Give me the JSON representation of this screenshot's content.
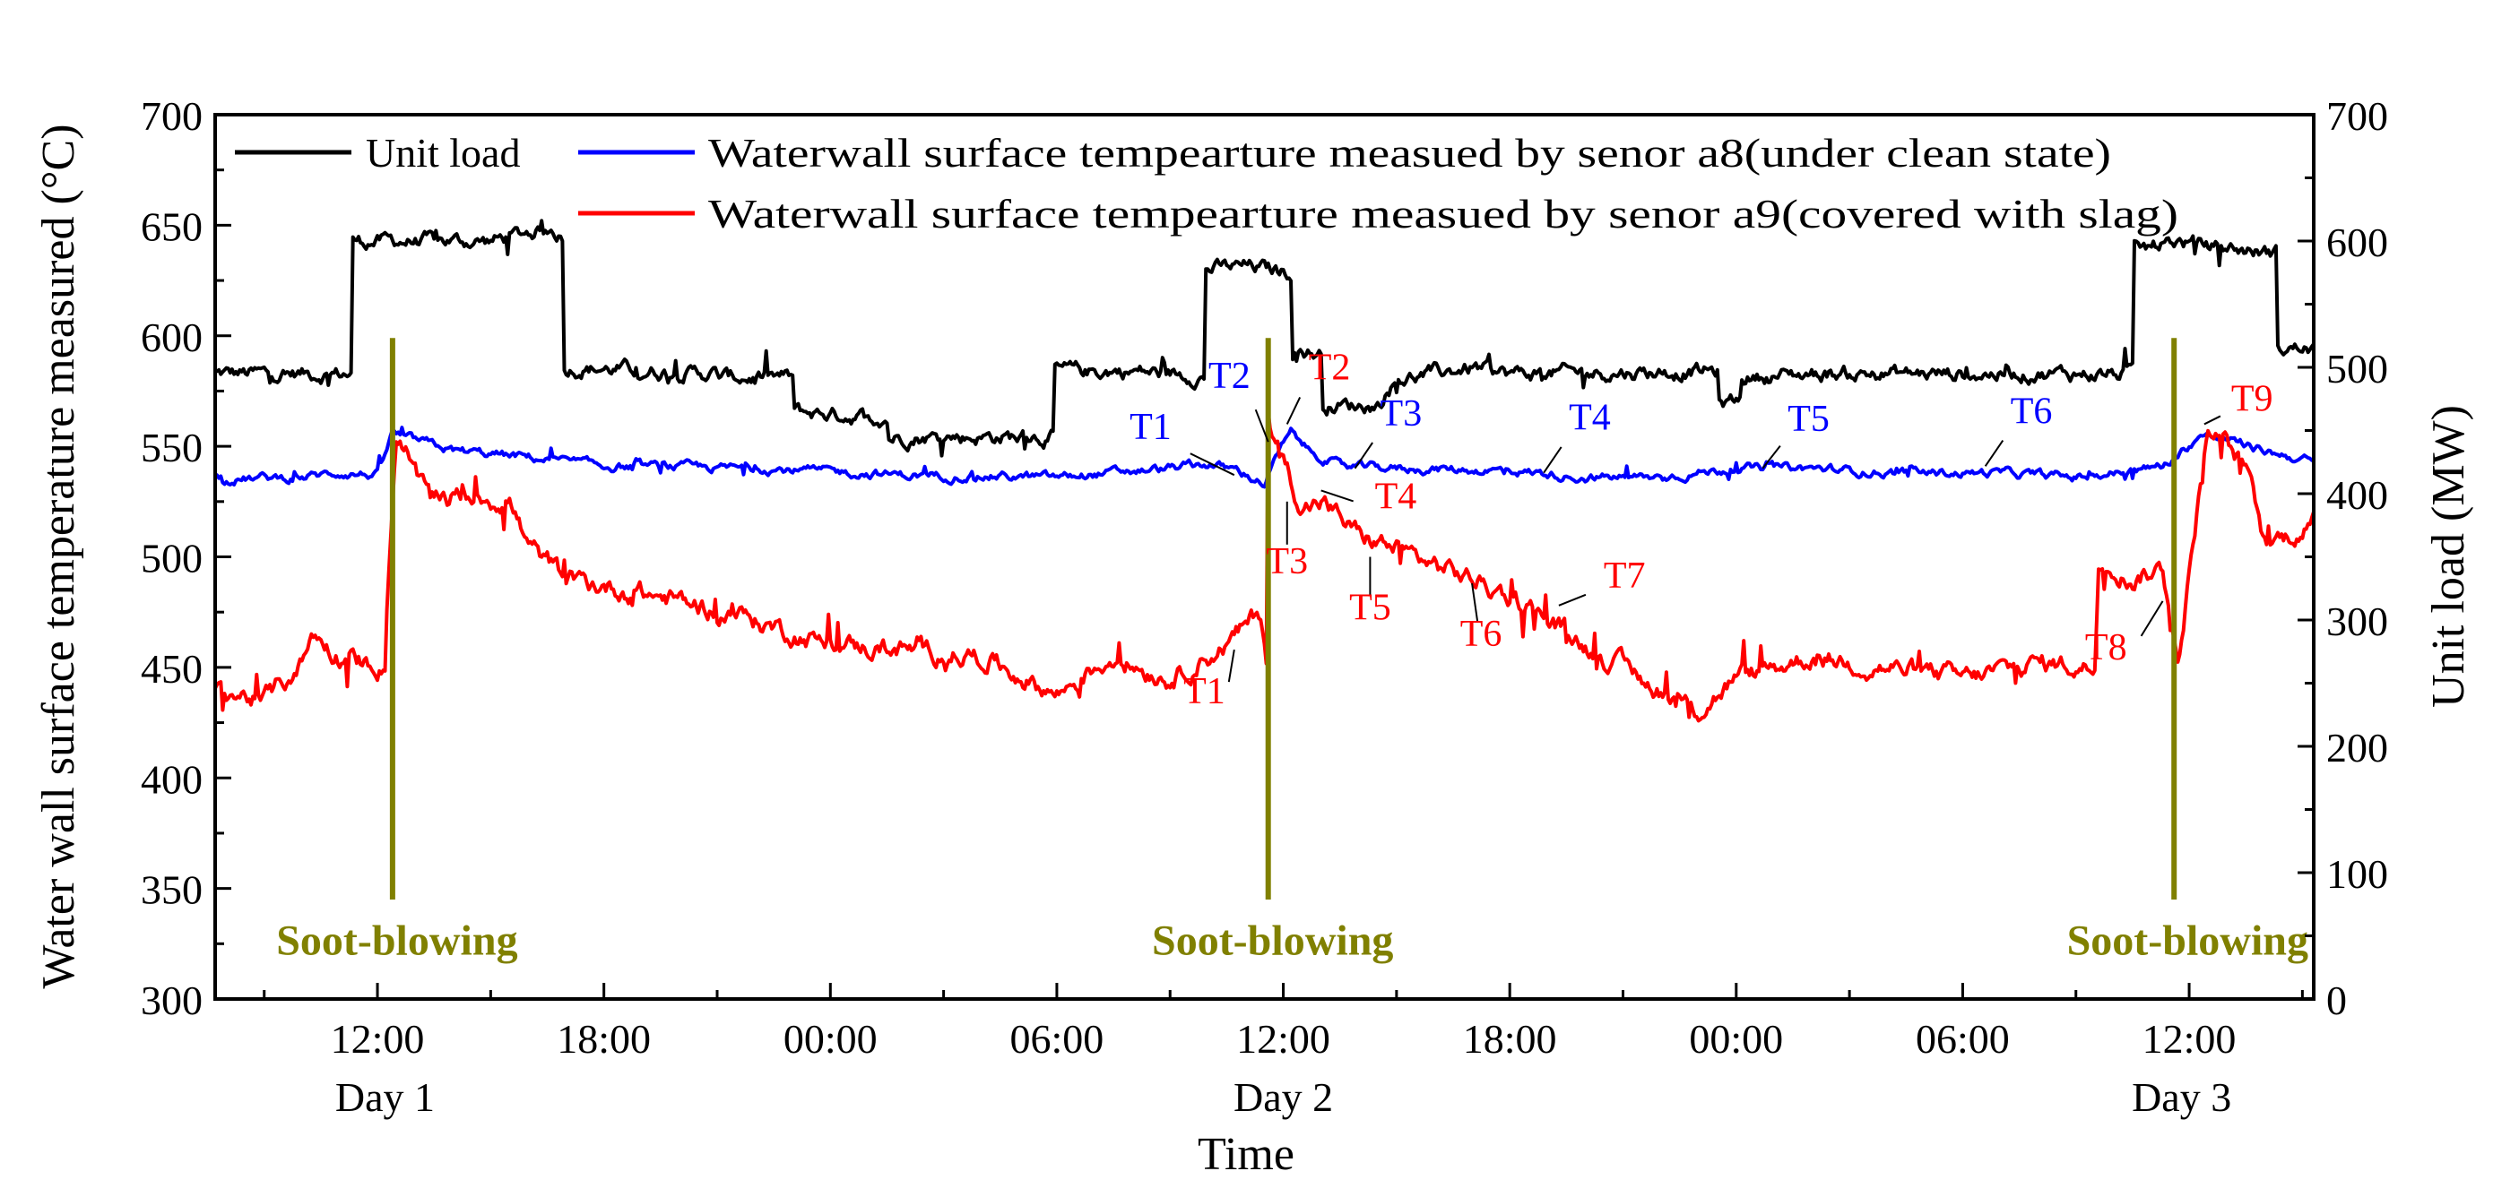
{
  "chart_data": {
    "type": "line",
    "xlabel": "Time",
    "ylabel_left": "Water wall surface temperature measured (°C)",
    "ylabel_right": "Unit load (MW)",
    "ylim_left": [
      300,
      700
    ],
    "ylim_right": [
      0,
      700
    ],
    "xlim_hours": [
      7.7,
      63.3
    ],
    "y_ticks_left": [
      "300",
      "350",
      "400",
      "450",
      "500",
      "550",
      "600",
      "650",
      "700"
    ],
    "y_ticks_right": [
      "0",
      "100",
      "200",
      "300",
      "400",
      "500",
      "600",
      "700"
    ],
    "x_ticks": [
      {
        "hour": 12,
        "label": "12:00"
      },
      {
        "hour": 18,
        "label": "18:00"
      },
      {
        "hour": 24,
        "label": "00:00"
      },
      {
        "hour": 30,
        "label": "06:00"
      },
      {
        "hour": 36,
        "label": "12:00"
      },
      {
        "hour": 42,
        "label": "18:00"
      },
      {
        "hour": 48,
        "label": "00:00"
      },
      {
        "hour": 54,
        "label": "06:00"
      },
      {
        "hour": 60,
        "label": "12:00"
      }
    ],
    "day_labels": [
      {
        "hour": 12.2,
        "label": "Day 1"
      },
      {
        "hour": 36.0,
        "label": "Day 2"
      },
      {
        "hour": 59.8,
        "label": "Day 3"
      }
    ],
    "legend": [
      {
        "name": "Unit load",
        "color": "#000000"
      },
      {
        "name": "Waterwall surface tempearture measued by senor a8(under clean state)",
        "color": "#0000ff"
      },
      {
        "name": "Waterwall surface tempearture measued by senor a9(covered with slag)",
        "color": "#ff0000"
      }
    ],
    "series": [
      {
        "name": "Unit load",
        "axis": "right",
        "color": "#000000",
        "noise": 9,
        "x": [
          7.7,
          11.3,
          11.35,
          15.0,
          16.5,
          16.9,
          16.95,
          21.0,
          21.05,
          23.0,
          23.05,
          25.5,
          25.55,
          29.9,
          29.95,
          32.0,
          33.9,
          33.95,
          35.0,
          36.2,
          36.25,
          37.0,
          37.05,
          38.5,
          39.0,
          41.0,
          42.0,
          47.5,
          47.55,
          48.1,
          48.15,
          50.0,
          55.0,
          58.0,
          58.5,
          58.55,
          59.5,
          62.3,
          62.35,
          63.3
        ],
        "values": [
          495,
          495,
          600,
          600,
          610,
          605,
          500,
          495,
          492,
          492,
          465,
          460,
          445,
          445,
          497,
          497,
          493,
          578,
          580,
          575,
          515,
          510,
          470,
          470,
          490,
          500,
          495,
          497,
          470,
          475,
          492,
          495,
          495,
          495,
          495,
          590,
          600,
          590,
          515,
          515
        ]
      },
      {
        "name": "Waterwall surface tempearture measued by senor a8(under clean state)",
        "axis": "left",
        "color": "#0000ff",
        "noise": 3,
        "x": [
          7.7,
          10.0,
          11.0,
          12.0,
          12.4,
          12.7,
          14.0,
          16.0,
          18.0,
          22.0,
          26.0,
          30.0,
          33.0,
          34.0,
          34.8,
          35.5,
          35.9,
          36.2,
          36.7,
          37.5,
          39.0,
          42.0,
          44.0,
          46.0,
          48.0,
          50.0,
          52.0,
          53.5,
          55.0,
          57.0,
          59.0,
          59.5,
          60.3,
          61.0,
          62.0,
          63.3
        ],
        "values": [
          535,
          536,
          538,
          537,
          556,
          554,
          548,
          545,
          541,
          540,
          537,
          536,
          540,
          542,
          539,
          533,
          548,
          556,
          548,
          541,
          540,
          539,
          536,
          536,
          540,
          540,
          538,
          538,
          538,
          536,
          540,
          543,
          555,
          553,
          548,
          543
        ]
      },
      {
        "name": "Waterwall surface tempearture measued by senor a9(covered with slag)",
        "axis": "left",
        "color": "#ff0000",
        "noise": 7,
        "x": [
          7.7,
          9.0,
          9.9,
          10.3,
          11.0,
          12.2,
          12.25,
          12.5,
          13.2,
          15.5,
          16.0,
          17.0,
          18.5,
          20.0,
          21.3,
          24.0,
          26.0,
          28.0,
          30.0,
          31.5,
          33.0,
          34.5,
          35.4,
          35.55,
          35.6,
          36.0,
          36.5,
          37.0,
          38.0,
          39.5,
          41.0,
          42.5,
          44.0,
          46.0,
          47.0,
          48.0,
          50.0,
          52.0,
          54.0,
          56.0,
          57.5,
          57.6,
          58.5,
          59.3,
          59.6,
          59.7,
          60.5,
          61.5,
          62.0,
          63.3
        ],
        "values": [
          440,
          435,
          450,
          465,
          455,
          450,
          480,
          555,
          530,
          525,
          505,
          490,
          485,
          480,
          475,
          460,
          458,
          455,
          438,
          455,
          445,
          460,
          475,
          455,
          560,
          545,
          522,
          525,
          510,
          500,
          490,
          478,
          460,
          440,
          430,
          445,
          455,
          450,
          445,
          452,
          450,
          500,
          490,
          495,
          465,
          450,
          560,
          540,
          505,
          515
        ]
      }
    ],
    "soot_blowing": [
      {
        "hour": 12.4,
        "label": "Soot-blowing"
      },
      {
        "hour": 35.6,
        "label": "Soot-blowing"
      },
      {
        "hour": 59.6,
        "label": "Soot-blowing"
      }
    ],
    "soot_blowing_color": "#808000",
    "annotations_blue": [
      {
        "label": "T1",
        "hour": 34.7,
        "temp": 537
      },
      {
        "label": "T2",
        "hour": 35.6,
        "temp": 552
      },
      {
        "label": "T3",
        "hour": 37.9,
        "temp": 540
      },
      {
        "label": "T4",
        "hour": 42.9,
        "temp": 538
      },
      {
        "label": "T5",
        "hour": 48.7,
        "temp": 540
      },
      {
        "label": "T6",
        "hour": 54.6,
        "temp": 541
      }
    ],
    "annotations_red": [
      {
        "label": "T1",
        "hour": 34.7,
        "temp": 458
      },
      {
        "label": "T2",
        "hour": 36.1,
        "temp": 560
      },
      {
        "label": "T3",
        "hour": 36.1,
        "temp": 525
      },
      {
        "label": "T4",
        "hour": 37.0,
        "temp": 530
      },
      {
        "label": "T5",
        "hour": 38.3,
        "temp": 500
      },
      {
        "label": "T6",
        "hour": 41.0,
        "temp": 488
      },
      {
        "label": "T7",
        "hour": 43.3,
        "temp": 478
      },
      {
        "label": "T8",
        "hour": 59.3,
        "temp": 480
      },
      {
        "label": "T9",
        "hour": 60.4,
        "temp": 560
      }
    ]
  }
}
